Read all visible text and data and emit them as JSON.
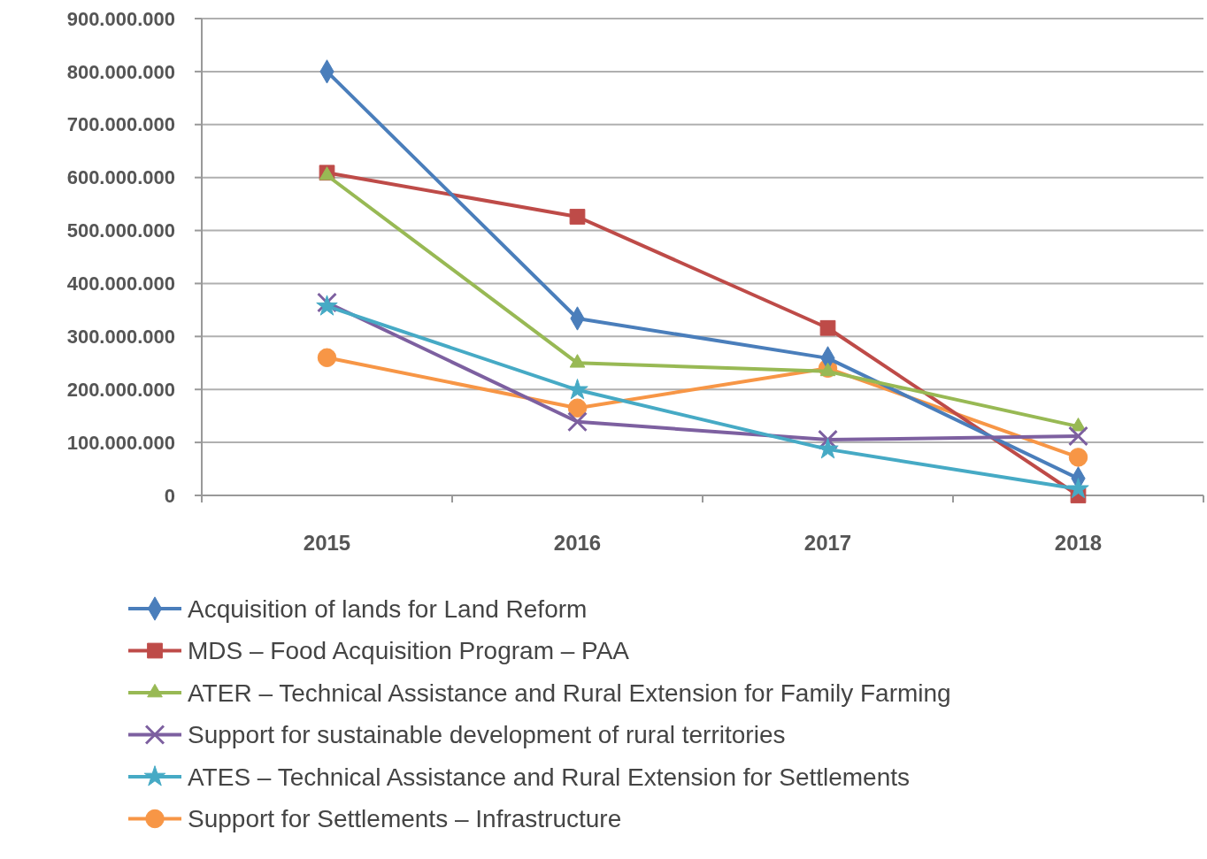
{
  "chart_data": {
    "type": "line",
    "categories": [
      "2015",
      "2016",
      "2017",
      "2018"
    ],
    "series": [
      {
        "name": "Acquisition of lands for Land Reform",
        "color": "#4a7ebb",
        "marker": "diamond",
        "values": [
          800000000,
          334000000,
          259000000,
          32000000
        ]
      },
      {
        "name": "MDS – Food Acquisition Program – PAA",
        "color": "#be4b48",
        "marker": "square",
        "values": [
          609000000,
          526000000,
          316000000,
          0
        ]
      },
      {
        "name": "ATER – Technical Assistance and Rural Extension for Family Farming",
        "color": "#98b954",
        "marker": "triangle",
        "values": [
          604000000,
          250000000,
          234000000,
          130000000
        ]
      },
      {
        "name": "Support for sustainable development of rural territories",
        "color": "#7d60a0",
        "marker": "cross",
        "values": [
          364000000,
          139000000,
          105000000,
          112000000
        ]
      },
      {
        "name": "ATES – Technical Assistance and Rural Extension for Settlements",
        "color": "#46aac5",
        "marker": "star",
        "values": [
          357000000,
          199000000,
          87000000,
          12000000
        ]
      },
      {
        "name": "Support for Settlements – Infrastructure",
        "color": "#f79646",
        "marker": "circle",
        "values": [
          260000000,
          165000000,
          240000000,
          72000000
        ]
      }
    ],
    "ylim": [
      0,
      900000000
    ],
    "yticks": [
      {
        "value": 0,
        "label": "0"
      },
      {
        "value": 100000000,
        "label": "100.000.000"
      },
      {
        "value": 200000000,
        "label": "200.000.000"
      },
      {
        "value": 300000000,
        "label": "300.000.000"
      },
      {
        "value": 400000000,
        "label": "400.000.000"
      },
      {
        "value": 500000000,
        "label": "500.000.000"
      },
      {
        "value": 600000000,
        "label": "600.000.000"
      },
      {
        "value": 700000000,
        "label": "700.000.000"
      },
      {
        "value": 800000000,
        "label": "800.000.000"
      },
      {
        "value": 900000000,
        "label": "900.000.000"
      }
    ],
    "grid": "y",
    "legend": "bottom",
    "line_style": "solid"
  }
}
